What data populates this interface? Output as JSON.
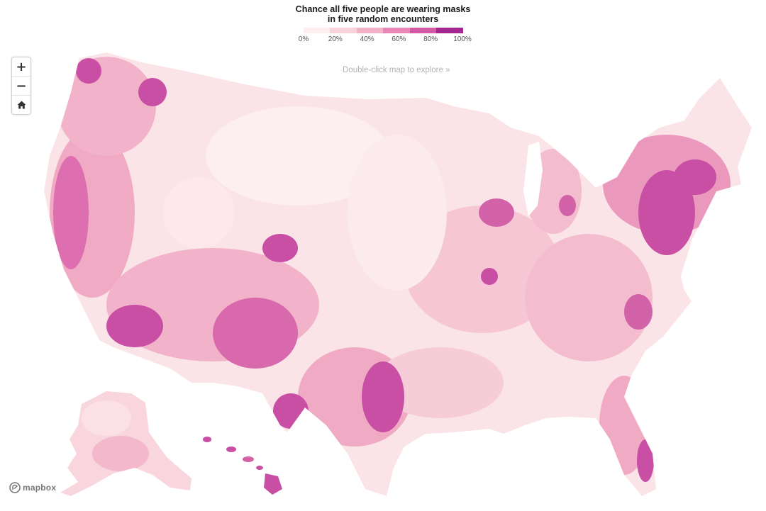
{
  "legend": {
    "title_line1": "Chance all five people are wearing masks",
    "title_line2": "in five random encounters",
    "ticks": [
      "0%",
      "20%",
      "40%",
      "60%",
      "80%",
      "100%"
    ],
    "colors": [
      "#fdeef0",
      "#f9d3dc",
      "#f2b1c7",
      "#e886b5",
      "#d659a6",
      "#a3268e"
    ]
  },
  "controls": {
    "zoom_in": "+",
    "zoom_out": "−",
    "home_icon": "home-icon"
  },
  "hint_text": "Double-click map to explore »",
  "attribution": {
    "logo_text": "mapbox"
  },
  "map_colors": {
    "base": "#fbe4e8",
    "low": "#fde9ec",
    "mid": "#f4b8cc",
    "high": "#e58ab8",
    "vhigh": "#c4479f",
    "max": "#a3268e"
  }
}
